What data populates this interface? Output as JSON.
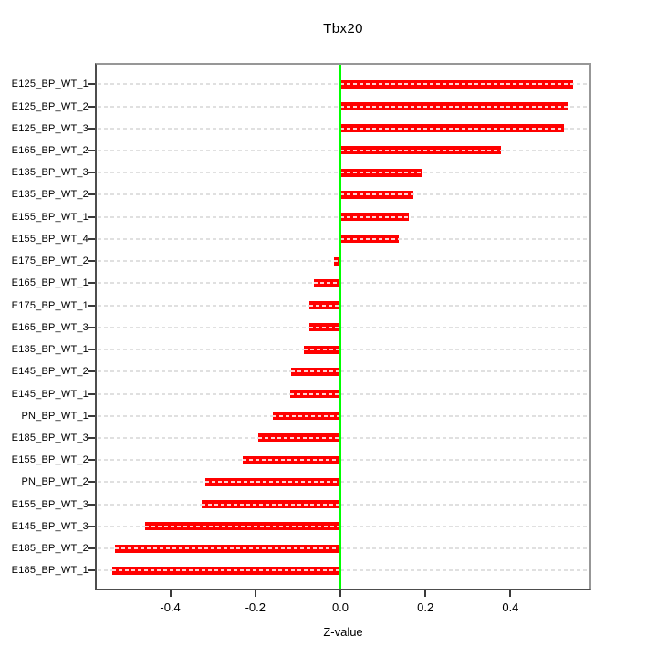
{
  "figure": {
    "background": "#ffffff"
  },
  "chart_data": {
    "type": "bar",
    "orientation": "horizontal",
    "title": "Tbx20",
    "xlabel": "Z-value",
    "ylabel": "",
    "xlim": [
      -0.575,
      0.59
    ],
    "grid": "dashed horizontal guide line per category",
    "legend": null,
    "zero_reference_line": 0.0,
    "x_ticks": [
      {
        "value": -0.4,
        "label": "-0.4"
      },
      {
        "value": -0.2,
        "label": "-0.2"
      },
      {
        "value": 0.0,
        "label": "0.0"
      },
      {
        "value": 0.2,
        "label": "0.2"
      },
      {
        "value": 0.4,
        "label": "0.4"
      }
    ],
    "categories": [
      "E125_BP_WT_1",
      "E125_BP_WT_2",
      "E125_BP_WT_3",
      "E165_BP_WT_2",
      "E135_BP_WT_3",
      "E135_BP_WT_2",
      "E155_BP_WT_1",
      "E155_BP_WT_4",
      "E175_BP_WT_2",
      "E165_BP_WT_1",
      "E175_BP_WT_1",
      "E165_BP_WT_3",
      "E135_BP_WT_1",
      "E145_BP_WT_2",
      "E145_BP_WT_1",
      "PN_BP_WT_1",
      "E185_BP_WT_3",
      "E155_BP_WT_2",
      "PN_BP_WT_2",
      "E155_BP_WT_3",
      "E145_BP_WT_3",
      "E185_BP_WT_2",
      "E185_BP_WT_1"
    ],
    "values": [
      0.548,
      0.535,
      0.525,
      0.378,
      0.19,
      0.171,
      0.16,
      0.137,
      -0.014,
      -0.062,
      -0.073,
      -0.074,
      -0.086,
      -0.116,
      -0.117,
      -0.159,
      -0.194,
      -0.229,
      -0.318,
      -0.326,
      -0.459,
      -0.529,
      -0.536
    ]
  },
  "style": {
    "bar_color": "#ff0000",
    "zero_line_color": "#00ff00",
    "grid_color": "#e0e0e0",
    "box_color_light": "#979797",
    "box_color_dark": "#4d4d4d",
    "tick_color": "#3a3a3a",
    "text_color": "#000000"
  }
}
